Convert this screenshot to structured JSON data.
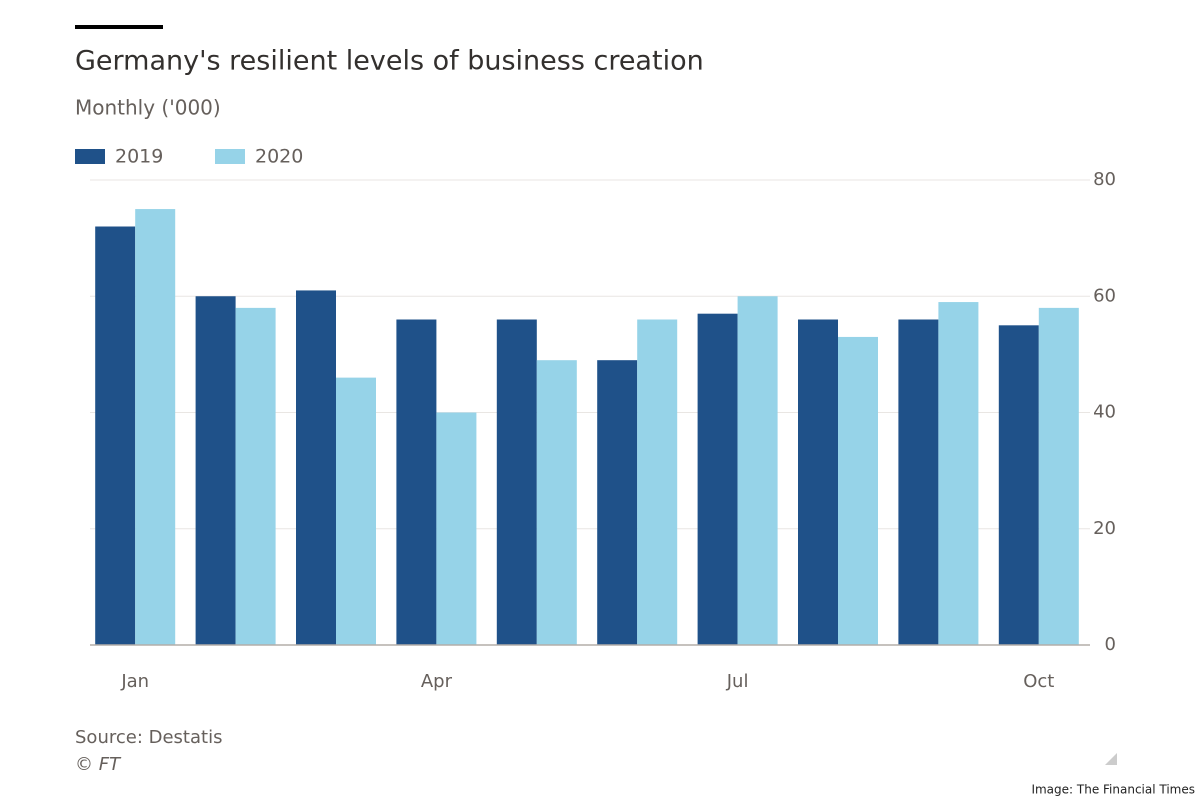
{
  "chart_data": {
    "type": "bar",
    "title": "Germany's resilient levels of business creation",
    "subtitle": "Monthly ('000)",
    "categories": [
      "Jan",
      null,
      null,
      "Apr",
      null,
      null,
      "Jul",
      null,
      null,
      "Oct"
    ],
    "series": [
      {
        "name": "2019",
        "color": "#1f5189",
        "values": [
          72,
          60,
          61,
          56,
          56,
          49,
          57,
          56,
          56,
          55
        ]
      },
      {
        "name": "2020",
        "color": "#96d3e8",
        "values": [
          75,
          58,
          46,
          40,
          49,
          56,
          60,
          53,
          59,
          58
        ]
      }
    ],
    "ylim": [
      0,
      80
    ],
    "yticks": [
      0,
      20,
      40,
      60,
      80
    ],
    "grid": true,
    "source": "Source: Destatis",
    "copyright": "© FT",
    "credit": "Image: The Financial Times"
  }
}
